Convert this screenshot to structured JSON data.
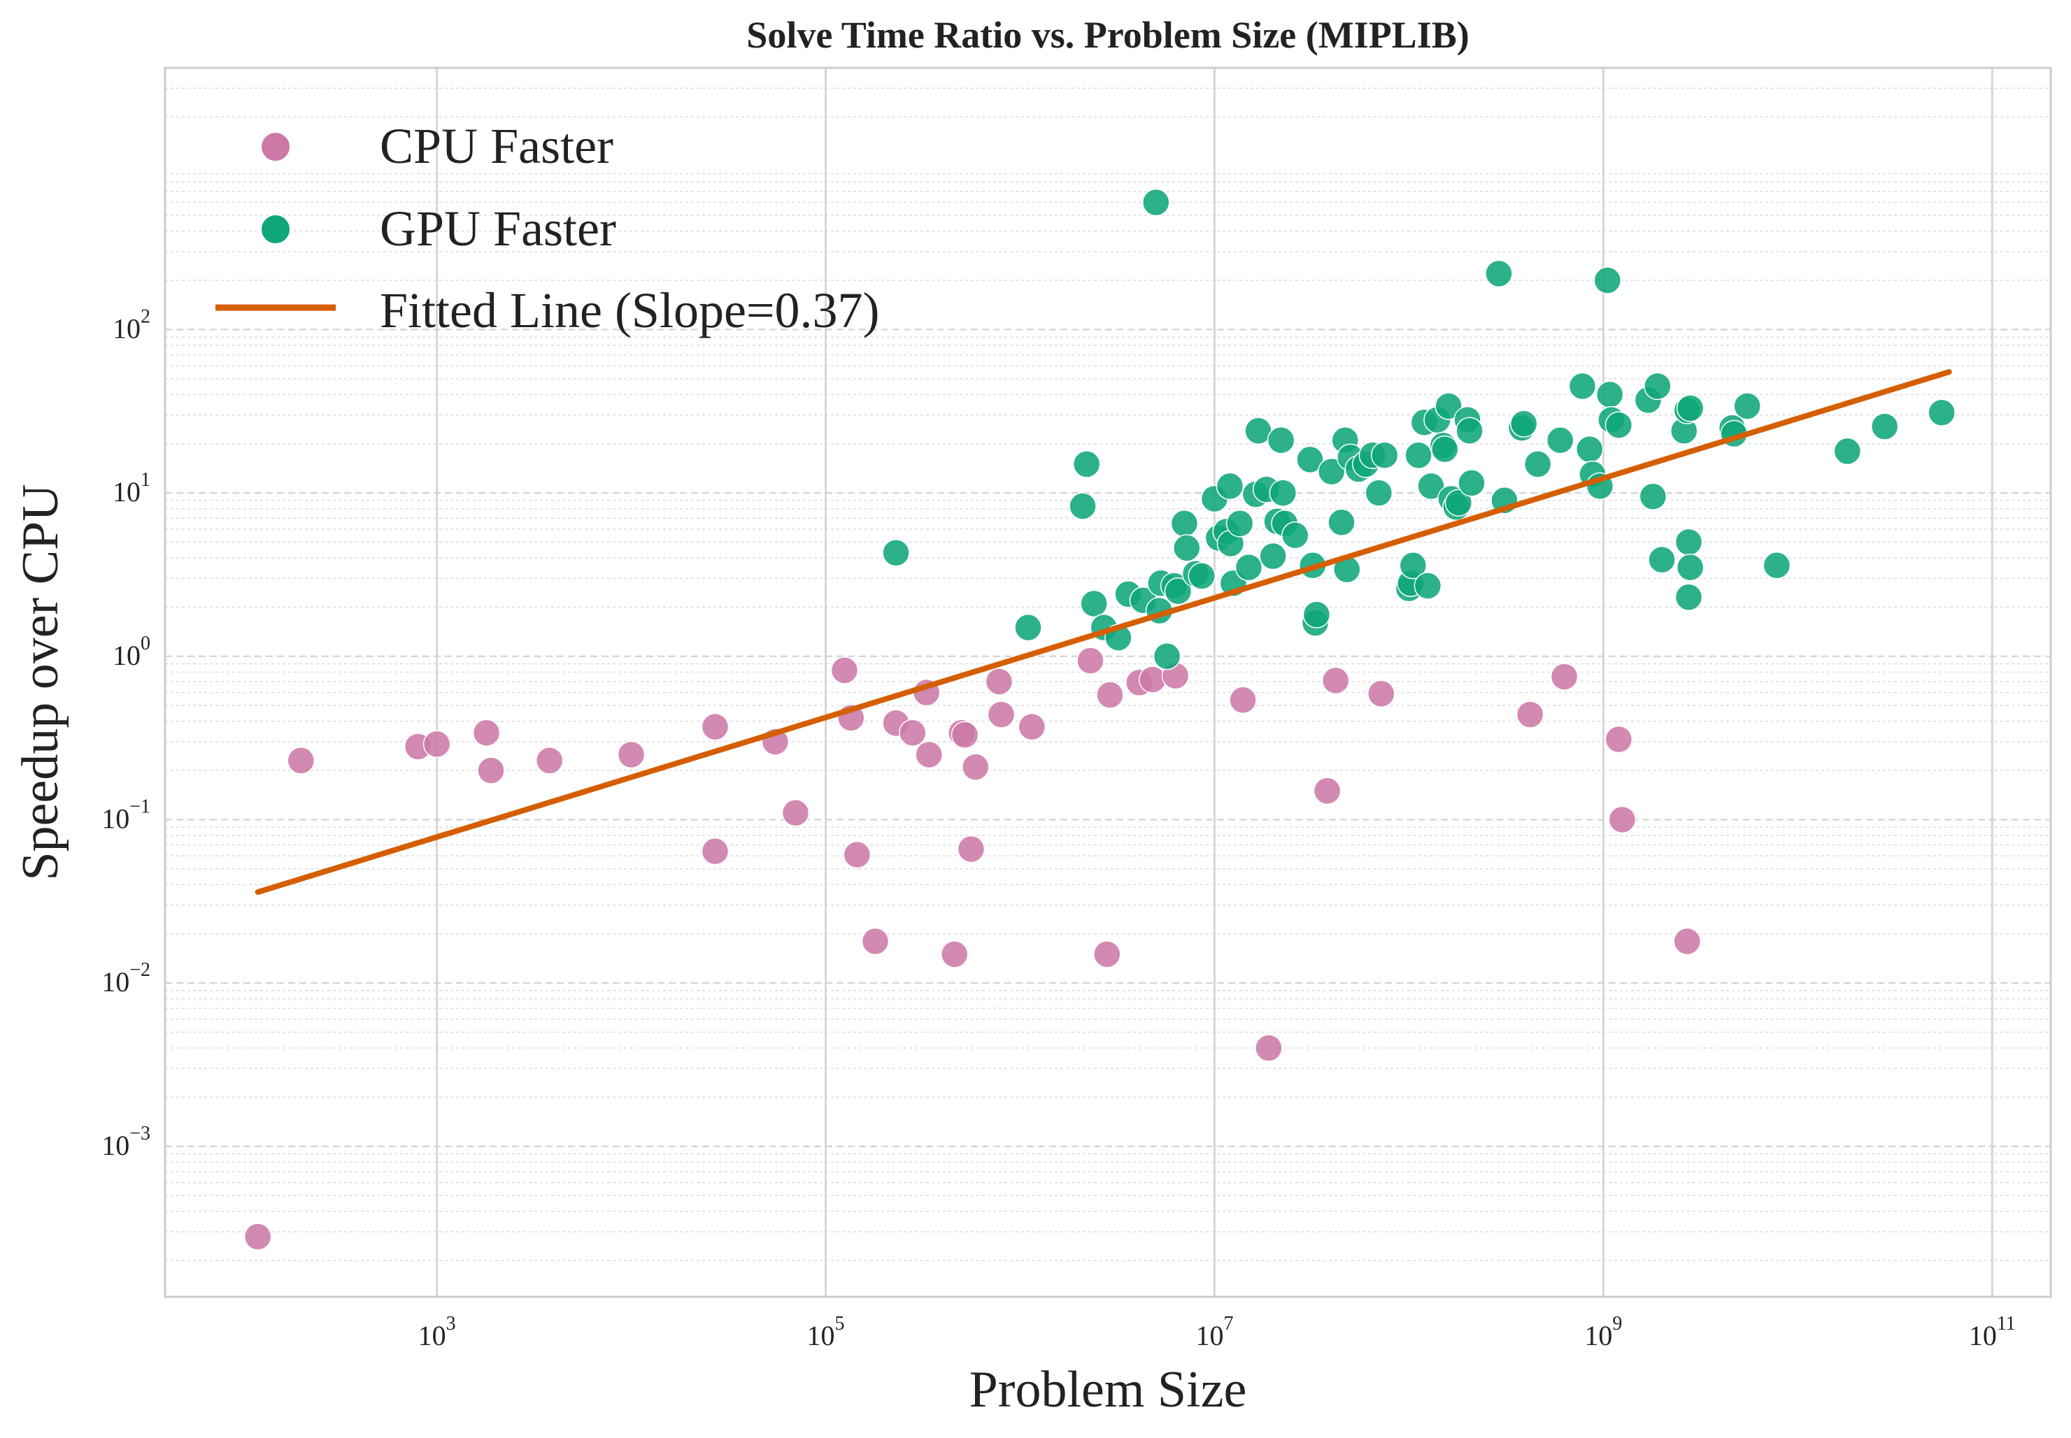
{
  "chart_data": {
    "type": "scatter",
    "title": "Solve Time Ratio vs. Problem Size (MIPLIB)",
    "xlabel": "Problem Size",
    "ylabel": "Speedup over CPU",
    "xscale": "log",
    "yscale": "log",
    "xlim": [
      40,
      200000000000
    ],
    "ylim": [
      0.00012,
      4000
    ],
    "x_ticks": [
      {
        "base": "10",
        "exp": "3",
        "value": 1000
      },
      {
        "base": "10",
        "exp": "5",
        "value": 100000
      },
      {
        "base": "10",
        "exp": "7",
        "value": 10000000
      },
      {
        "base": "10",
        "exp": "9",
        "value": 1000000000
      },
      {
        "base": "10",
        "exp": "11",
        "value": 100000000000
      }
    ],
    "y_ticks": [
      {
        "base": "10",
        "exp": "−3",
        "value": 0.001
      },
      {
        "base": "10",
        "exp": "−2",
        "value": 0.01
      },
      {
        "base": "10",
        "exp": "−1",
        "value": 0.1
      },
      {
        "base": "10",
        "exp": "0",
        "value": 1
      },
      {
        "base": "10",
        "exp": "1",
        "value": 10
      },
      {
        "base": "10",
        "exp": "2",
        "value": 100
      }
    ],
    "grid": true,
    "legend_position": "top-left",
    "colors": {
      "cpu": "#cc79a7",
      "gpu": "#0fa67a",
      "fit": "#d55e00"
    },
    "series": [
      {
        "name": "CPU Faster",
        "kind": "scatter",
        "points": [
          [
            120,
            0.00028
          ],
          [
            200,
            0.23
          ],
          [
            800,
            0.28
          ],
          [
            1000,
            0.29
          ],
          [
            1800,
            0.34
          ],
          [
            1900,
            0.2
          ],
          [
            3800,
            0.23
          ],
          [
            10000,
            0.25
          ],
          [
            27000,
            0.37
          ],
          [
            27000,
            0.064
          ],
          [
            55000,
            0.3
          ],
          [
            70000,
            0.11
          ],
          [
            125000,
            0.82
          ],
          [
            135000,
            0.42
          ],
          [
            145000,
            0.061
          ],
          [
            180000,
            0.018
          ],
          [
            230000,
            0.39
          ],
          [
            280000,
            0.34
          ],
          [
            330000,
            0.6
          ],
          [
            340000,
            0.25
          ],
          [
            460000,
            0.015
          ],
          [
            500000,
            0.34
          ],
          [
            520000,
            0.33
          ],
          [
            560000,
            0.066
          ],
          [
            590000,
            0.21
          ],
          [
            780000,
            0.7
          ],
          [
            800000,
            0.44
          ],
          [
            1150000,
            0.37
          ],
          [
            2300000,
            0.94
          ],
          [
            2800000,
            0.015
          ],
          [
            2900000,
            0.58
          ],
          [
            4100000,
            0.69
          ],
          [
            4800000,
            0.72
          ],
          [
            6300000,
            0.76
          ],
          [
            14000000,
            0.54
          ],
          [
            19000000,
            0.004
          ],
          [
            38000000,
            0.15
          ],
          [
            42000000,
            0.71
          ],
          [
            72000000,
            0.59
          ],
          [
            420000000,
            0.44
          ],
          [
            630000000,
            0.75
          ],
          [
            1200000000,
            0.31
          ],
          [
            1250000000,
            0.1
          ],
          [
            2700000000,
            0.018
          ]
        ]
      },
      {
        "name": "GPU Faster",
        "kind": "scatter",
        "points": [
          [
            230000,
            4.3
          ],
          [
            1100000,
            1.5
          ],
          [
            2100000,
            8.3
          ],
          [
            2200000,
            15.0
          ],
          [
            2400000,
            2.1
          ],
          [
            2700000,
            1.5
          ],
          [
            3200000,
            1.3
          ],
          [
            3600000,
            2.4
          ],
          [
            4300000,
            2.2
          ],
          [
            5000000,
            600
          ],
          [
            5200000,
            1.9
          ],
          [
            5300000,
            2.8
          ],
          [
            5700000,
            1.0
          ],
          [
            6200000,
            2.7
          ],
          [
            6500000,
            2.5
          ],
          [
            7000000,
            6.5
          ],
          [
            7200000,
            4.6
          ],
          [
            8000000,
            3.2
          ],
          [
            8600000,
            3.1
          ],
          [
            10000000,
            9.2
          ],
          [
            10500000,
            5.3
          ],
          [
            11500000,
            5.8
          ],
          [
            12000000,
            11.0
          ],
          [
            12100000,
            4.9
          ],
          [
            12500000,
            2.8
          ],
          [
            13500000,
            6.5
          ],
          [
            15000000,
            3.5
          ],
          [
            16300000,
            9.8
          ],
          [
            16800000,
            24.0
          ],
          [
            18500000,
            10.5
          ],
          [
            20000000,
            4.1
          ],
          [
            21000000,
            6.7
          ],
          [
            22000000,
            21.0
          ],
          [
            22500000,
            10.0
          ],
          [
            23000000,
            6.5
          ],
          [
            26000000,
            5.5
          ],
          [
            31000000,
            16.0
          ],
          [
            32000000,
            3.6
          ],
          [
            33000000,
            1.6
          ],
          [
            33500000,
            1.8
          ],
          [
            40000000,
            13.5
          ],
          [
            45000000,
            6.6
          ],
          [
            47000000,
            21.0
          ],
          [
            48000000,
            3.4
          ],
          [
            50000000,
            16.5
          ],
          [
            55000000,
            14.0
          ],
          [
            60000000,
            15.0
          ],
          [
            65000000,
            17.0
          ],
          [
            70000000,
            10.0
          ],
          [
            75000000,
            17.0
          ],
          [
            100000000,
            2.6
          ],
          [
            102000000,
            2.8
          ],
          [
            105000000,
            3.6
          ],
          [
            112000000,
            17.0
          ],
          [
            120000000,
            27.0
          ],
          [
            125000000,
            2.7
          ],
          [
            130000000,
            11.0
          ],
          [
            140000000,
            28.0
          ],
          [
            150000000,
            19.5
          ],
          [
            153000000,
            18.5
          ],
          [
            160000000,
            34.0
          ],
          [
            165000000,
            9.2
          ],
          [
            175000000,
            8.2
          ],
          [
            180000000,
            8.7
          ],
          [
            200000000,
            28.0
          ],
          [
            205000000,
            24.0
          ],
          [
            210000000,
            11.5
          ],
          [
            290000000,
            220
          ],
          [
            310000000,
            9.0
          ],
          [
            380000000,
            25.0
          ],
          [
            390000000,
            26.5
          ],
          [
            460000000,
            15.0
          ],
          [
            600000000,
            21.0
          ],
          [
            780000000,
            45.0
          ],
          [
            850000000,
            18.5
          ],
          [
            880000000,
            13.0
          ],
          [
            960000000,
            11.0
          ],
          [
            1050000000,
            200
          ],
          [
            1080000000,
            40.0
          ],
          [
            1100000000,
            28.0
          ],
          [
            1200000000,
            26.0
          ],
          [
            1700000000,
            37.0
          ],
          [
            1800000000,
            9.5
          ],
          [
            1900000000,
            45.0
          ],
          [
            2000000000,
            3.9
          ],
          [
            2600000000,
            24.0
          ],
          [
            2700000000,
            32.0
          ],
          [
            2800000000,
            33.0
          ],
          [
            2750000000,
            5.0
          ],
          [
            2800000000,
            3.5
          ],
          [
            2750000000,
            2.3
          ],
          [
            4600000000,
            25.0
          ],
          [
            4700000000,
            23.0
          ],
          [
            5500000000,
            34.0
          ],
          [
            7800000000,
            3.6
          ],
          [
            18000000000,
            18.0
          ],
          [
            28000000000,
            25.5
          ],
          [
            55000000000,
            31.0
          ]
        ]
      },
      {
        "name": "Fitted Line (Slope=0.37)",
        "kind": "line",
        "points": [
          [
            120,
            0.036
          ],
          [
            60000000000,
            55
          ]
        ]
      }
    ]
  }
}
